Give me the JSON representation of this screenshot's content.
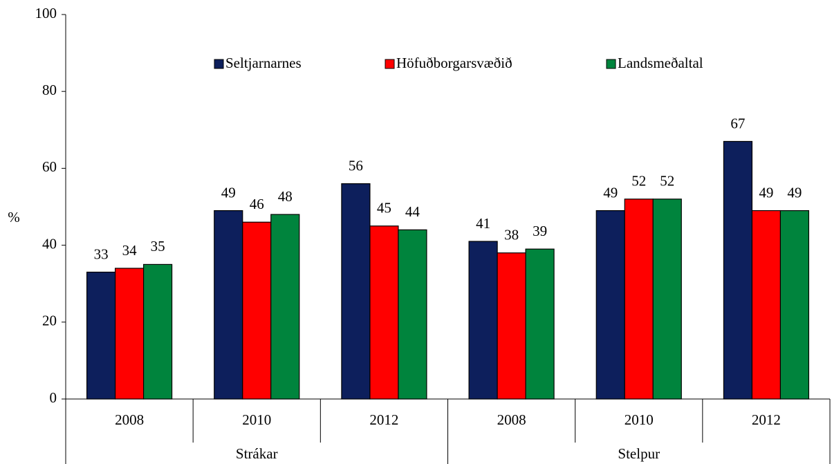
{
  "chart_data": {
    "type": "bar",
    "y_label": "%",
    "groups": [
      {
        "name": "Strákar",
        "categories": [
          "2008",
          "2010",
          "2012"
        ]
      },
      {
        "name": "Stelpur",
        "categories": [
          "2008",
          "2010",
          "2012"
        ]
      }
    ],
    "series": [
      {
        "name": "Seltjarnarnes",
        "color": "#0d1f5c",
        "values": [
          33,
          49,
          56,
          41,
          49,
          67
        ]
      },
      {
        "name": "Höfuðborgarsvæðið",
        "color": "#ff0000",
        "values": [
          34,
          46,
          45,
          38,
          52,
          49
        ]
      },
      {
        "name": "Landsmeðaltal",
        "color": "#00843d",
        "values": [
          35,
          48,
          44,
          39,
          52,
          49
        ]
      }
    ],
    "ylim": [
      0,
      100
    ],
    "yticks": [
      0,
      20,
      40,
      60,
      80,
      100
    ],
    "grid": false,
    "legend": "top"
  }
}
